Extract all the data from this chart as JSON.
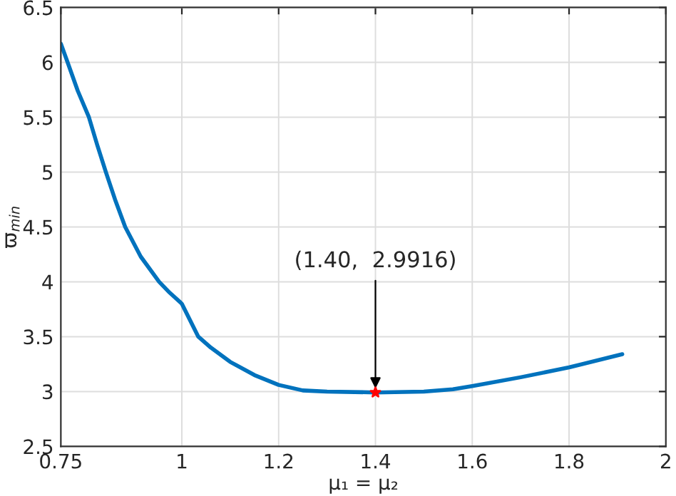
{
  "chart_data": {
    "type": "line",
    "xlabel": "μ₁ = μ₂",
    "ylabel": "ϖ$_{min}$",
    "series": [
      {
        "color": "#0072bd",
        "x": [
          0.75,
          0.764,
          0.785,
          0.808,
          0.825,
          0.843,
          0.862,
          0.883,
          0.915,
          0.953,
          0.975,
          1.0,
          1.034,
          1.06,
          1.1,
          1.15,
          1.2,
          1.25,
          1.3,
          1.4,
          1.5,
          1.56,
          1.6,
          1.7,
          1.8,
          1.91
        ],
        "values": [
          6.17,
          6.0,
          5.74,
          5.5,
          5.25,
          5.0,
          4.75,
          4.5,
          4.23,
          4.0,
          3.9,
          3.8,
          3.5,
          3.4,
          3.27,
          3.15,
          3.06,
          3.01,
          3.0,
          2.9916,
          3.0,
          3.02,
          3.05,
          3.13,
          3.22,
          3.34
        ]
      },
      {
        "type": "scatter",
        "color": "#ff0000",
        "marker": "star",
        "x": [
          1.4
        ],
        "values": [
          2.9916
        ]
      }
    ],
    "annotations": [
      {
        "text": "(1.40,  2.9916)",
        "x": 1.4,
        "y": 2.9916
      }
    ],
    "xlim": [
      0.75,
      2
    ],
    "xticks": [
      0.75,
      1,
      1.2,
      1.4,
      1.6,
      1.8,
      2
    ],
    "ylim": [
      2.5,
      6.5
    ],
    "yticks": [
      2.5,
      3,
      3.5,
      4,
      4.5,
      5,
      5.5,
      6,
      6.5
    ],
    "grid": true,
    "legend": false
  }
}
